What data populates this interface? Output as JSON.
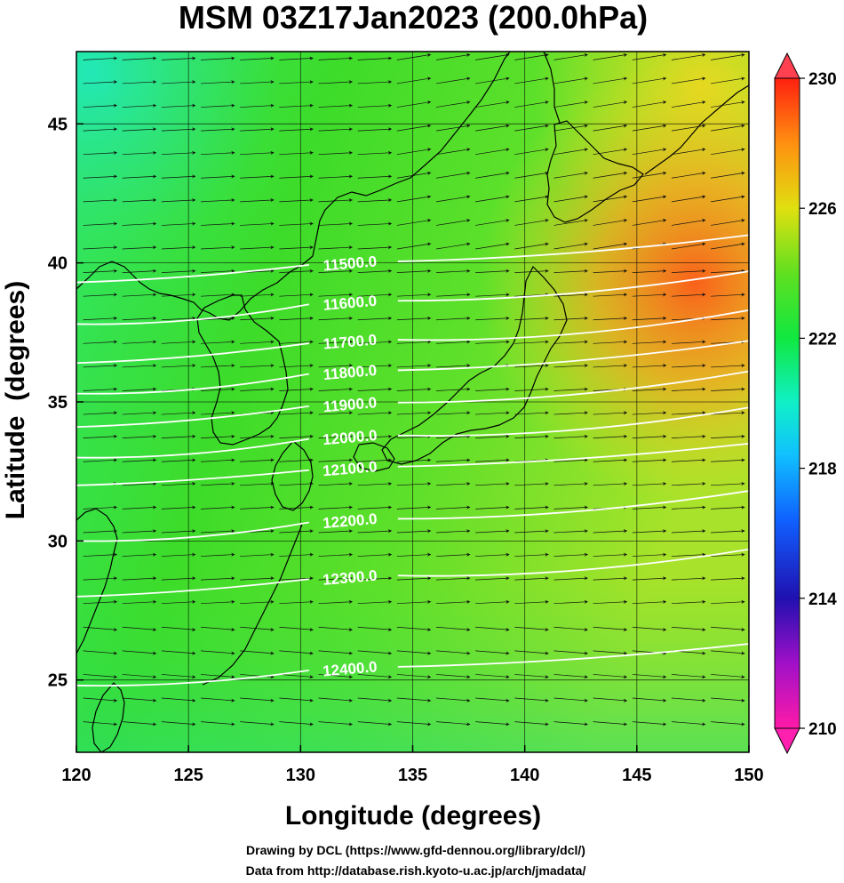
{
  "title": "MSM 03Z17Jan2023 (200.0hPa)",
  "xlabel": "Longitude (degrees)",
  "ylabel": "Latitude  (degrees)",
  "footer": {
    "line1": "Drawing by DCL (https://www.gfd-dennou.org/library/dcl/)",
    "line2": "Data from http://database.rish.kyoto-u.ac.jp/arch/jmadata/"
  },
  "chart_data": {
    "type": "heatmap",
    "xlim": [
      120,
      150
    ],
    "ylim": [
      22.4,
      47.6
    ],
    "x_ticks": [
      "120",
      "125",
      "130",
      "135",
      "140",
      "145",
      "150"
    ],
    "y_ticks": [
      "25",
      "30",
      "35",
      "40",
      "45"
    ],
    "grid": true,
    "colorbar": {
      "min": 210,
      "max": 230,
      "ticks": [
        "210",
        "214",
        "218",
        "222",
        "226",
        "230"
      ],
      "position": "right"
    },
    "contours": [
      {
        "label": "11500.0",
        "left_lat": 39.3,
        "right_lat": 41.0,
        "label_lon": 132.2
      },
      {
        "label": "11600.0",
        "left_lat": 37.8,
        "right_lat": 39.7,
        "label_lon": 132.2
      },
      {
        "label": "11700.0",
        "left_lat": 36.4,
        "right_lat": 38.3,
        "label_lon": 132.2
      },
      {
        "label": "11800.0",
        "left_lat": 35.3,
        "right_lat": 37.2,
        "label_lon": 132.2
      },
      {
        "label": "11900.0",
        "left_lat": 34.1,
        "right_lat": 36.1,
        "label_lon": 132.2
      },
      {
        "label": "12000.0",
        "left_lat": 33.0,
        "right_lat": 34.8,
        "label_lon": 132.2
      },
      {
        "label": "12100.0",
        "left_lat": 32.0,
        "right_lat": 33.5,
        "label_lon": 132.2
      },
      {
        "label": "12200.0",
        "left_lat": 30.0,
        "right_lat": 31.8,
        "label_lon": 132.2
      },
      {
        "label": "12300.0",
        "left_lat": 28.0,
        "right_lat": 29.7,
        "label_lon": 132.2
      },
      {
        "label": "12400.0",
        "left_lat": 24.8,
        "right_lat": 26.3,
        "label_lon": 132.2
      }
    ]
  }
}
